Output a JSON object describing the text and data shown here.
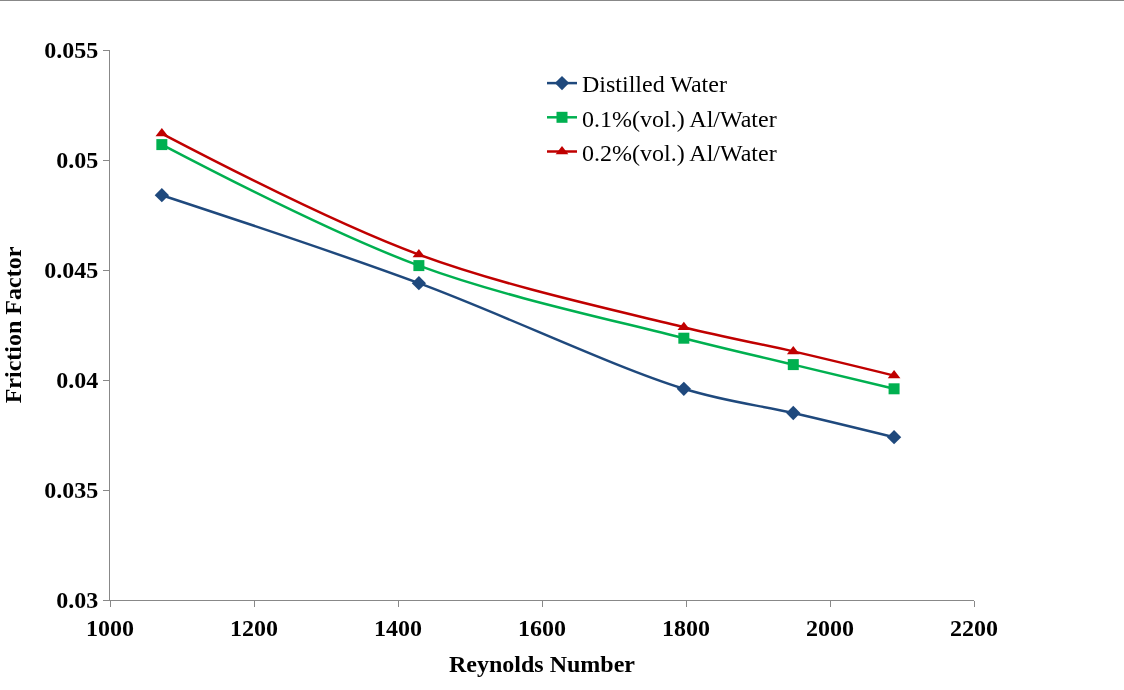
{
  "chart_data": {
    "type": "line",
    "xlabel": "Reynolds Number",
    "ylabel": "Friction Factor",
    "x": [
      1072,
      1429,
      1797,
      1949,
      2089
    ],
    "series": [
      {
        "name": "Distilled Water",
        "color": "#1f497d",
        "marker": "diamond",
        "values": [
          0.0484,
          0.0444,
          0.0396,
          0.0385,
          0.0374
        ]
      },
      {
        "name": "0.1%(vol.) Al/Water",
        "color": "#00b050",
        "marker": "square",
        "values": [
          0.0507,
          0.0452,
          0.0419,
          0.0407,
          0.0396
        ]
      },
      {
        "name": "0.2%(vol.) Al/Water",
        "color": "#c00000",
        "marker": "triangle",
        "values": [
          0.0512,
          0.0457,
          0.0424,
          0.0413,
          0.0402
        ]
      }
    ],
    "xlim": [
      1000,
      2200
    ],
    "xticks": [
      1000,
      1200,
      1400,
      1600,
      1800,
      2000,
      2200
    ],
    "ylim": [
      0.03,
      0.055
    ],
    "yticks": [
      0.03,
      0.035,
      0.04,
      0.045,
      0.05,
      0.055
    ],
    "legend": "top right",
    "line_style": "solid"
  }
}
